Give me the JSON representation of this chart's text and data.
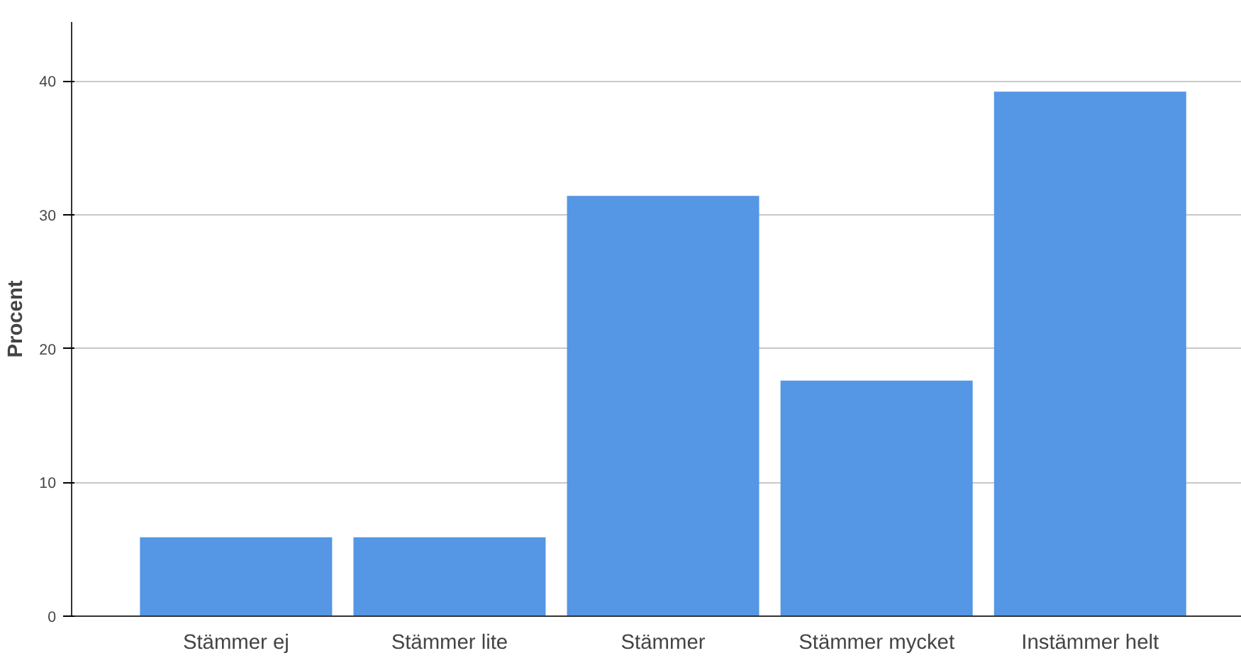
{
  "chart_data": {
    "type": "bar",
    "ylabel": "Procent",
    "categories": [
      "Stämmer ej",
      "Stämmer lite",
      "Stämmer",
      "Stämmer mycket",
      "Instämmer helt"
    ],
    "values": [
      5.9,
      5.9,
      31.4,
      17.6,
      39.2
    ],
    "color": "#5596e5",
    "ylim": [
      0,
      44.4
    ],
    "yticks": [
      0,
      10,
      20,
      30,
      40
    ],
    "grid": "y"
  }
}
